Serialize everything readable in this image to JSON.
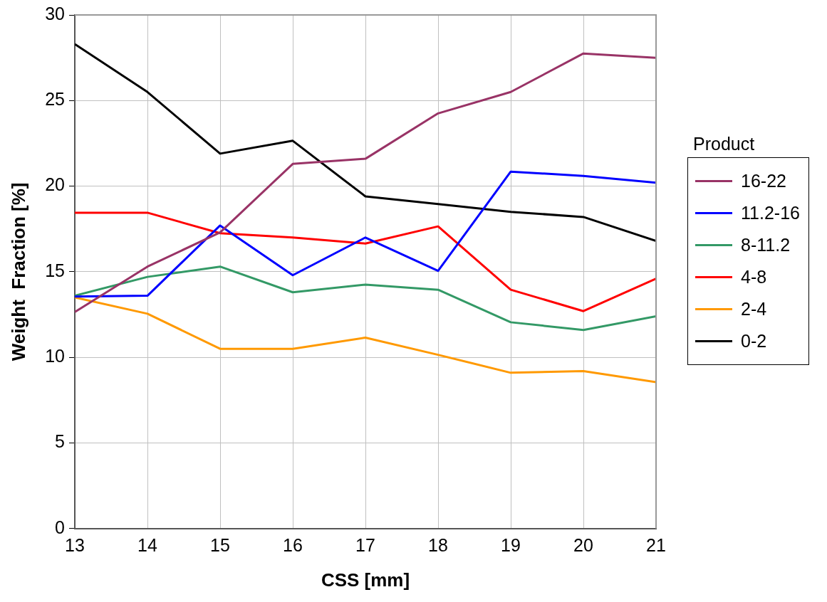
{
  "chart_data": {
    "type": "line",
    "xlabel": "CSS [mm]",
    "ylabel": "Weight  Fraction [%]",
    "legend_title": "Product",
    "x": [
      13,
      14,
      15,
      16,
      17,
      18,
      19,
      20,
      21
    ],
    "xlim": [
      13,
      21
    ],
    "xticks": [
      13,
      14,
      15,
      16,
      17,
      18,
      19,
      20,
      21
    ],
    "ylim": [
      0,
      30
    ],
    "yticks": [
      0,
      5,
      10,
      15,
      20,
      25,
      30
    ],
    "grid": true,
    "legend": "right",
    "marker": "none",
    "line_style": "solid",
    "series": [
      {
        "name": "16-22",
        "color": "#993366",
        "values": [
          12.65,
          15.3,
          17.3,
          21.3,
          21.6,
          24.25,
          25.5,
          27.75,
          27.5
        ]
      },
      {
        "name": "11.2-16",
        "color": "#0000ff",
        "values": [
          13.55,
          13.6,
          17.7,
          14.8,
          17.0,
          15.05,
          20.85,
          20.6,
          20.2
        ]
      },
      {
        "name": "8-11.2",
        "color": "#339966",
        "values": [
          13.6,
          14.7,
          15.3,
          13.8,
          14.25,
          13.95,
          12.05,
          11.6,
          12.4
        ]
      },
      {
        "name": "4-8",
        "color": "#ff0000",
        "values": [
          18.45,
          18.45,
          17.25,
          17.0,
          16.65,
          17.65,
          13.95,
          12.7,
          14.6
        ]
      },
      {
        "name": "2-4",
        "color": "#ff9900",
        "values": [
          13.5,
          12.55,
          10.5,
          10.5,
          11.15,
          10.15,
          9.1,
          9.2,
          8.55
        ]
      },
      {
        "name": "0-2",
        "color": "#000000",
        "values": [
          28.3,
          25.5,
          21.9,
          22.65,
          19.4,
          18.95,
          18.5,
          18.2,
          16.8
        ]
      }
    ]
  }
}
